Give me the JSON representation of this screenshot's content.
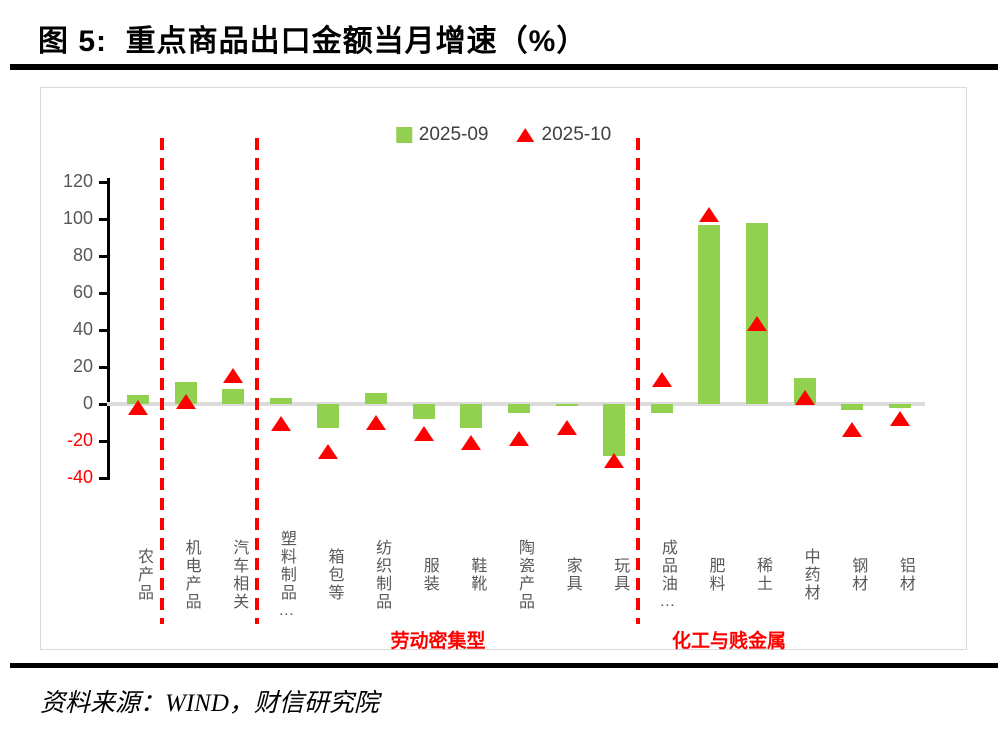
{
  "page": {
    "title": "图 5:  重点商品出口金额当月增速（%）",
    "source": "资料来源：WIND，财信研究院"
  },
  "legend": {
    "series1_label": "2025-09",
    "series2_label": "2025-10"
  },
  "annotations": {
    "group1": "劳动密集型",
    "group2": "化工与贱金属"
  },
  "colors": {
    "bar_green": "#92d050",
    "marker_red": "#ff0000",
    "axis_text_gray": "#595959",
    "negative_tick_red": "#ff0000",
    "separator_red": "#ff0000",
    "chart_border": "#d9d9d9"
  },
  "chart_data": {
    "type": "bar",
    "title": "图 5: 重点商品出口金额当月增速（%）",
    "xlabel": "",
    "ylabel": "",
    "ylim": [
      -40,
      120
    ],
    "yticks": [
      120,
      100,
      80,
      60,
      40,
      20,
      0,
      -20,
      -40
    ],
    "grid": "zero-line-only",
    "legend_position": "top-center",
    "categories": [
      "农产品",
      "机电产品",
      "汽车相关",
      "塑料制品…",
      "箱包等",
      "纺织制品",
      "服装",
      "鞋靴",
      "陶瓷产品",
      "家具",
      "玩具",
      "成品油…",
      "肥料",
      "稀土",
      "中药材",
      "钢材",
      "铝材"
    ],
    "series": [
      {
        "name": "2025-09",
        "type": "bar",
        "color": "#92d050",
        "values": [
          5,
          12,
          8,
          3,
          -13,
          6,
          -8,
          -13,
          -5,
          -1,
          -28,
          -5,
          97,
          98,
          14,
          -3,
          -2
        ]
      },
      {
        "name": "2025-10",
        "type": "scatter",
        "marker": "triangle-up",
        "color": "#ff0000",
        "values": [
          -2,
          1,
          15,
          -11,
          -26,
          -10,
          -16,
          -21,
          -19,
          -13,
          -31,
          13,
          102,
          43,
          3,
          -14,
          -8
        ]
      }
    ],
    "separators_after_index": [
      0,
      2,
      10
    ],
    "group_labels": [
      {
        "text": "劳动密集型",
        "categories": [
          "塑料制品…",
          "玩具"
        ]
      },
      {
        "text": "化工与贱金属",
        "categories": [
          "成品油…",
          "铝材"
        ]
      }
    ]
  }
}
